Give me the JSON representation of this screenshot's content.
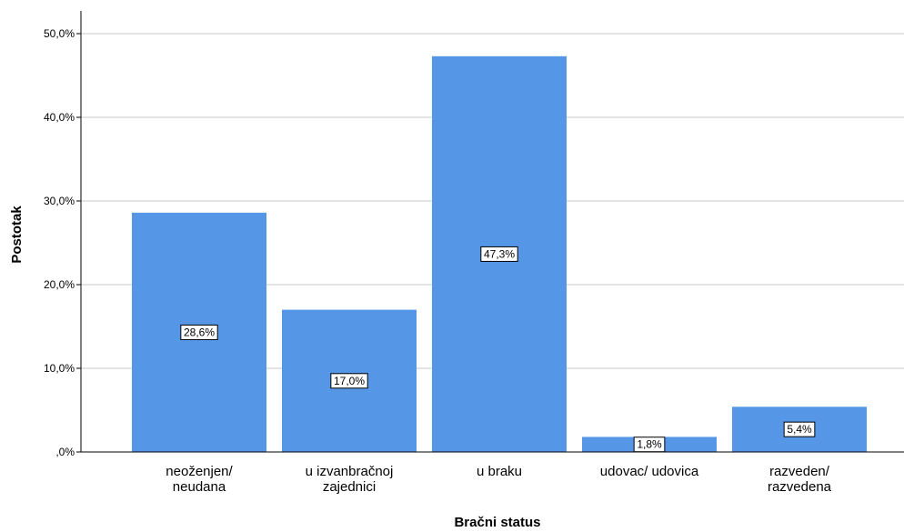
{
  "chart_data": {
    "type": "bar",
    "title": "",
    "xlabel": "Bračni status",
    "ylabel": "Postotak",
    "categories": [
      [
        "neoženjen/",
        "neudana"
      ],
      [
        "u izvanbračnoj",
        "zajednici"
      ],
      [
        "u braku"
      ],
      [
        "udovac/ udovica"
      ],
      [
        "razveden/",
        "razvedena"
      ]
    ],
    "values": [
      28.6,
      17.0,
      47.3,
      1.8,
      5.4
    ],
    "data_labels": [
      "28,6%",
      "17,0%",
      "47,3%",
      "1,8%",
      "5,4%"
    ],
    "ylim": [
      0,
      50
    ],
    "yticks": [
      0,
      10,
      20,
      30,
      40,
      50
    ],
    "ytick_labels": [
      ",0%",
      "10,0%",
      "20,0%",
      "30,0%",
      "40,0%",
      "50,0%"
    ],
    "grid": true,
    "legend": "none",
    "colors": {
      "bar": "#5596e6",
      "grid": "#c8c8c8",
      "axis": "#000000",
      "label_box_fill": "#ffffff",
      "label_box_stroke": "#000000"
    }
  }
}
